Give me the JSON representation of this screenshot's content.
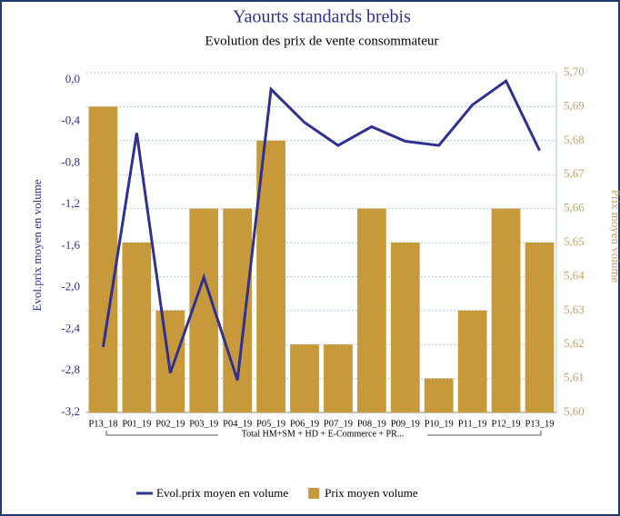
{
  "chart_data": {
    "type": "bar_line",
    "title": "Yaourts standards brebis",
    "subtitle": "Evolution des prix de vente consommateur",
    "categories": [
      "P13_18",
      "P01_19",
      "P02_19",
      "P03_19",
      "P04_19",
      "P05_19",
      "P06_19",
      "P07_19",
      "P08_19",
      "P09_19",
      "P10_19",
      "P11_19",
      "P12_19",
      "P13_19"
    ],
    "group_label": "Total HM+SM + HD + E-Commerce + PR...",
    "ylabel": "Evol.prix moyen en volume",
    "y2label": "Prix moyen volume",
    "ylim": [
      -3.2,
      0
    ],
    "yticks": [
      {
        "value": 0,
        "label": "0,0"
      },
      {
        "value": -0.4,
        "label": "-0,4"
      },
      {
        "value": -0.8,
        "label": "-0,8"
      },
      {
        "value": -1.2,
        "label": "-1,2"
      },
      {
        "value": -1.6,
        "label": "-1,6"
      },
      {
        "value": -2.0,
        "label": "-2,0"
      },
      {
        "value": -2.4,
        "label": "-2,4"
      },
      {
        "value": -2.8,
        "label": "-2,8"
      },
      {
        "value": -3.2,
        "label": "-3,2"
      }
    ],
    "y2lim": [
      5.6,
      5.7
    ],
    "y2ticks": [
      {
        "value": 5.7,
        "label": "5,70"
      },
      {
        "value": 5.69,
        "label": "5,69"
      },
      {
        "value": 5.68,
        "label": "5,68"
      },
      {
        "value": 5.67,
        "label": "5,67"
      },
      {
        "value": 5.66,
        "label": "5,66"
      },
      {
        "value": 5.65,
        "label": "5,65"
      },
      {
        "value": 5.64,
        "label": "5,64"
      },
      {
        "value": 5.63,
        "label": "5,63"
      },
      {
        "value": 5.62,
        "label": "5,62"
      },
      {
        "value": 5.61,
        "label": "5,61"
      },
      {
        "value": 5.6,
        "label": "5,60"
      }
    ],
    "grid": true,
    "series": [
      {
        "name": "Evol.prix moyen en volume",
        "type": "line",
        "color": "#2e3192",
        "axis": "y",
        "values": [
          -2.57,
          -0.51,
          -2.82,
          -1.9,
          -2.89,
          -0.09,
          -0.41,
          -0.63,
          -0.45,
          -0.59,
          -0.63,
          -0.24,
          -0.01,
          -0.68
        ]
      },
      {
        "name": "Prix moyen volume",
        "type": "bar",
        "color": "#c8993a",
        "axis": "y2",
        "values": [
          5.69,
          5.65,
          5.63,
          5.66,
          5.66,
          5.68,
          5.62,
          5.62,
          5.66,
          5.65,
          5.61,
          5.63,
          5.66,
          5.65
        ]
      }
    ]
  }
}
